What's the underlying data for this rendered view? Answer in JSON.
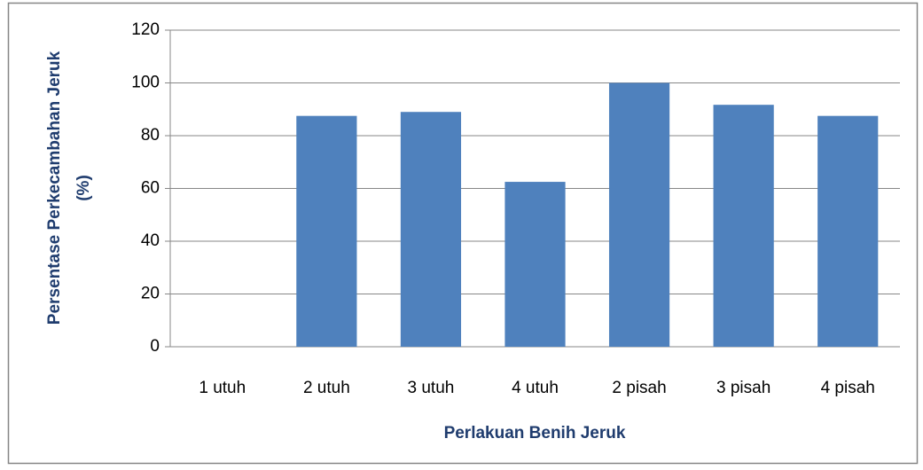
{
  "chart_data": {
    "type": "bar",
    "x_label": "Perlakuan Benih Jeruk",
    "y_label": [
      "Persentase Perkecambahan Jeruk",
      "(%)"
    ],
    "categories": [
      "1 utuh",
      "2 utuh",
      "3 utuh",
      "4 utuh",
      "2 pisah",
      "3 pisah",
      "4 pisah"
    ],
    "values": [
      0,
      87.5,
      89,
      62.5,
      100,
      91.7,
      87.5
    ],
    "color": "#4f81bd",
    "ylim": [
      0,
      120
    ],
    "yticks": [
      0,
      20,
      40,
      60,
      80,
      100,
      120
    ],
    "grid": true
  }
}
